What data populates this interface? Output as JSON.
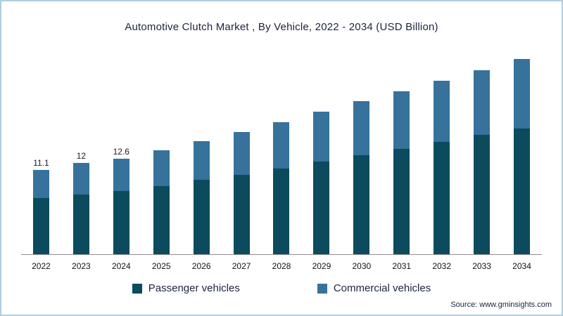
{
  "title": "Automotive Clutch Market , By Vehicle, 2022 - 2034 (USD Billion)",
  "source": "Source: www.gminsights.com",
  "colors": {
    "passenger": "#0c4a5e",
    "commercial": "#36729b",
    "frame_border": "#aecfe0"
  },
  "legend": [
    {
      "label": "Passenger vehicles",
      "color": "#0c4a5e"
    },
    {
      "label": "Commercial vehicles",
      "color": "#36729b"
    }
  ],
  "chart_data": {
    "type": "bar",
    "stacked": true,
    "title": "Automotive Clutch Market , By Vehicle, 2022 - 2034 (USD Billion)",
    "xlabel": "",
    "ylabel": "USD Billion",
    "ylim": [
      0,
      27
    ],
    "grid": false,
    "legend_position": "bottom",
    "categories": [
      "2022",
      "2023",
      "2024",
      "2025",
      "2026",
      "2027",
      "2028",
      "2029",
      "2030",
      "2031",
      "2032",
      "2033",
      "2034"
    ],
    "series": [
      {
        "name": "Passenger vehicles",
        "color": "#0c4a5e",
        "values": [
          7.4,
          7.9,
          8.3,
          9.0,
          9.8,
          10.5,
          11.3,
          12.2,
          13.1,
          13.9,
          14.8,
          15.7,
          16.6
        ]
      },
      {
        "name": "Commercial vehicles",
        "color": "#36729b",
        "values": [
          3.7,
          4.1,
          4.3,
          4.7,
          5.1,
          5.6,
          6.1,
          6.6,
          7.1,
          7.6,
          8.1,
          8.6,
          9.1
        ]
      }
    ],
    "totals": [
      11.1,
      12.0,
      12.6,
      13.7,
      14.9,
      16.1,
      17.4,
      18.8,
      20.2,
      21.5,
      22.9,
      24.3,
      25.7
    ],
    "data_labels": {
      "2022": "11.1",
      "2023": "12",
      "2024": "12.6"
    }
  }
}
